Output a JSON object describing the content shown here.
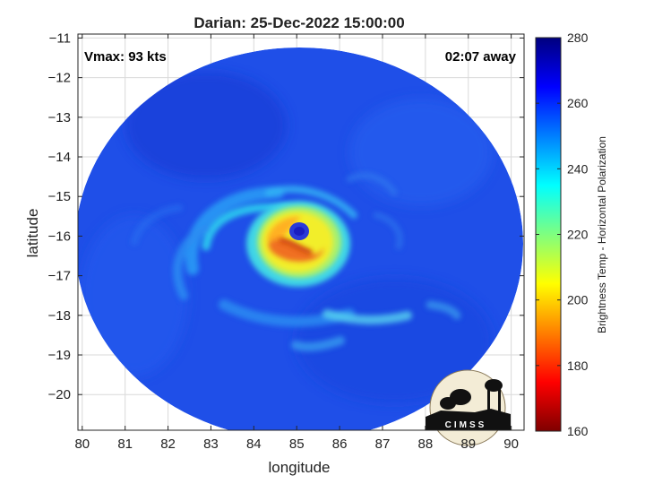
{
  "chart_data": {
    "type": "heatmap",
    "title": "Darian: 25-Dec-2022 15:00:00",
    "xlabel": "longitude",
    "ylabel": "latitude",
    "xlim": [
      79.9,
      90.3
    ],
    "ylim": [
      -20.9,
      -10.9
    ],
    "x_ticks": [
      80,
      81,
      82,
      83,
      84,
      85,
      86,
      87,
      88,
      89,
      90
    ],
    "y_ticks": [
      -11,
      -12,
      -13,
      -14,
      -15,
      -16,
      -17,
      -18,
      -19,
      -20
    ],
    "grid": true,
    "annotations": {
      "vmax": "Vmax: 93 kts",
      "time_offset": "02:07 away"
    },
    "colorbar": {
      "label": "Brightness Temp - Horizontal Polarization",
      "range": [
        160,
        280
      ],
      "ticks": [
        160,
        180,
        200,
        220,
        240,
        260,
        280
      ],
      "colormap": [
        "#7f0000",
        "#ff0000",
        "#ff7f00",
        "#ffff00",
        "#7fff7f",
        "#00ffff",
        "#007fff",
        "#0000ff",
        "#00007f"
      ]
    },
    "storm_center": {
      "lon": 85.0,
      "lat": -16.0
    },
    "swath_edge_values": 258,
    "features": [
      {
        "name": "eye",
        "lon": 85.0,
        "lat": -15.85,
        "value": 262
      },
      {
        "name": "eyewall",
        "lon": 84.9,
        "lat": -16.2,
        "value": 200
      },
      {
        "name": "eyewall-minimum",
        "lon": 84.5,
        "lat": -16.2,
        "value": 185
      }
    ]
  },
  "logo": {
    "text": "CIMSS"
  }
}
